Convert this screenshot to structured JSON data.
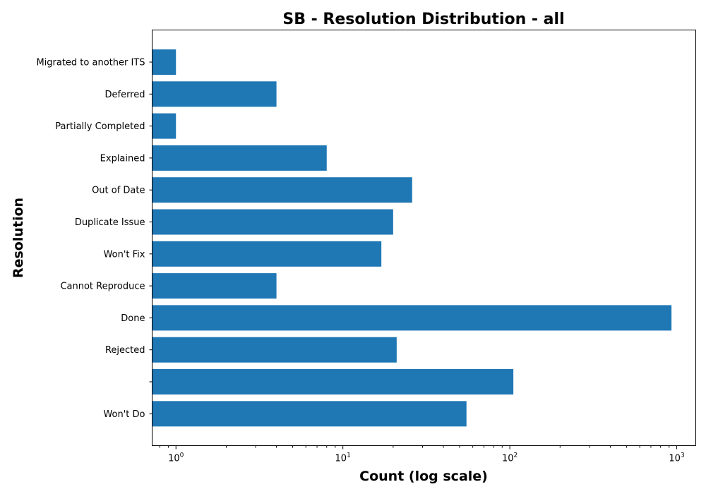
{
  "chart_data": {
    "type": "bar",
    "orientation": "horizontal",
    "title": "SB - Resolution Distribution - all",
    "xlabel": "Count (log scale)",
    "ylabel": "Resolution",
    "x_scale": "log",
    "xlim": [
      0.72,
      1300
    ],
    "x_ticks": [
      {
        "value": 1,
        "base": "10",
        "exp": "0"
      },
      {
        "value": 10,
        "base": "10",
        "exp": "1"
      },
      {
        "value": 100,
        "base": "10",
        "exp": "2"
      },
      {
        "value": 1000,
        "base": "10",
        "exp": "3"
      }
    ],
    "categories": [
      "Migrated to another ITS",
      "Deferred",
      "Partially Completed",
      "Explained",
      "Out of Date",
      "Duplicate Issue",
      "Won't Fix",
      "Cannot Reproduce",
      "Done",
      "Rejected",
      "",
      "Won't Do"
    ],
    "values": [
      1,
      4,
      1,
      8,
      26,
      20,
      17,
      4,
      930,
      21,
      105,
      55
    ],
    "bar_color": "#1f77b4",
    "grid": false,
    "legend": "none"
  }
}
